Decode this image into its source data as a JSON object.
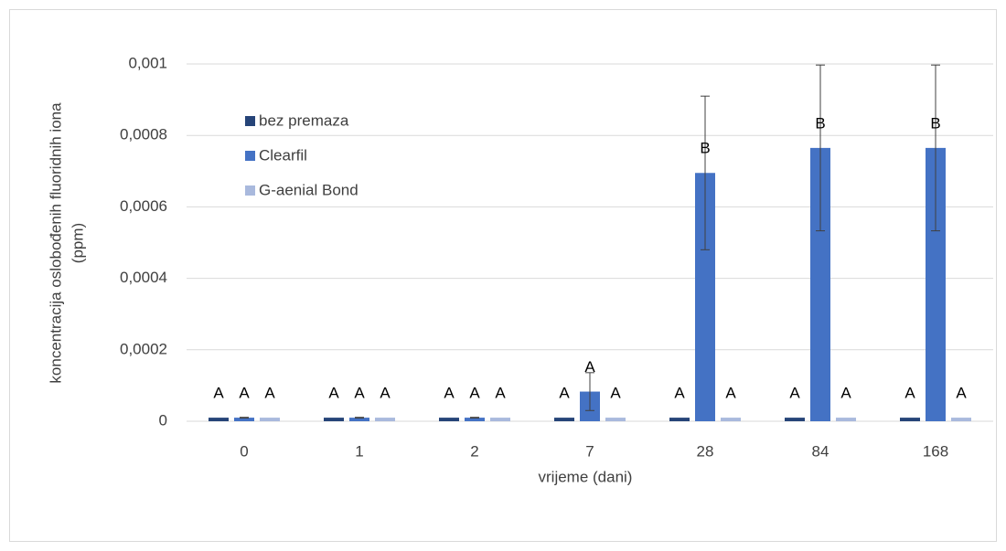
{
  "chart_data": {
    "type": "bar",
    "ylabel": [
      "koncentracija oslobođenih fluoridnih iona",
      "(ppm)"
    ],
    "xlabel": "vrijeme (dani)",
    "categories": [
      "0",
      "1",
      "2",
      "7",
      "28",
      "84",
      "168"
    ],
    "series": [
      {
        "name": "bez premaza",
        "color": "#264478",
        "values": [
          1e-05,
          1e-05,
          1e-05,
          1e-05,
          1e-05,
          1e-05,
          1e-05
        ],
        "letters": [
          "A",
          "A",
          "A",
          "A",
          "A",
          "A",
          "A"
        ]
      },
      {
        "name": "Clearfil",
        "color": "#4472c4",
        "values": [
          1e-05,
          1e-05,
          1e-05,
          8.3e-05,
          0.000695,
          0.000765,
          0.000765
        ],
        "errors": [
          1e-06,
          1e-06,
          1e-06,
          5.3e-05,
          0.000215,
          0.000232,
          0.000232
        ],
        "letters": [
          "A",
          "A",
          "A",
          "A",
          "B",
          "B",
          "B"
        ]
      },
      {
        "name": "G-aenial Bond",
        "color": "#a9b9dd",
        "values": [
          1e-05,
          1e-05,
          1e-05,
          1e-05,
          1e-05,
          1e-05,
          1e-05
        ],
        "letters": [
          "A",
          "A",
          "A",
          "A",
          "A",
          "A",
          "A"
        ]
      }
    ],
    "ylim": [
      0,
      0.001
    ],
    "yticks": [
      0,
      {
        "value": 0.0002,
        "label": "0,0002"
      },
      {
        "value": 0.0004,
        "label": "0,0004"
      },
      {
        "value": 0.0006,
        "label": "0,0006"
      },
      {
        "value": 0.0008,
        "label": "0,0008"
      },
      {
        "value": 0.001,
        "label": "0,001"
      }
    ],
    "grid": true,
    "legend": "upper left"
  }
}
